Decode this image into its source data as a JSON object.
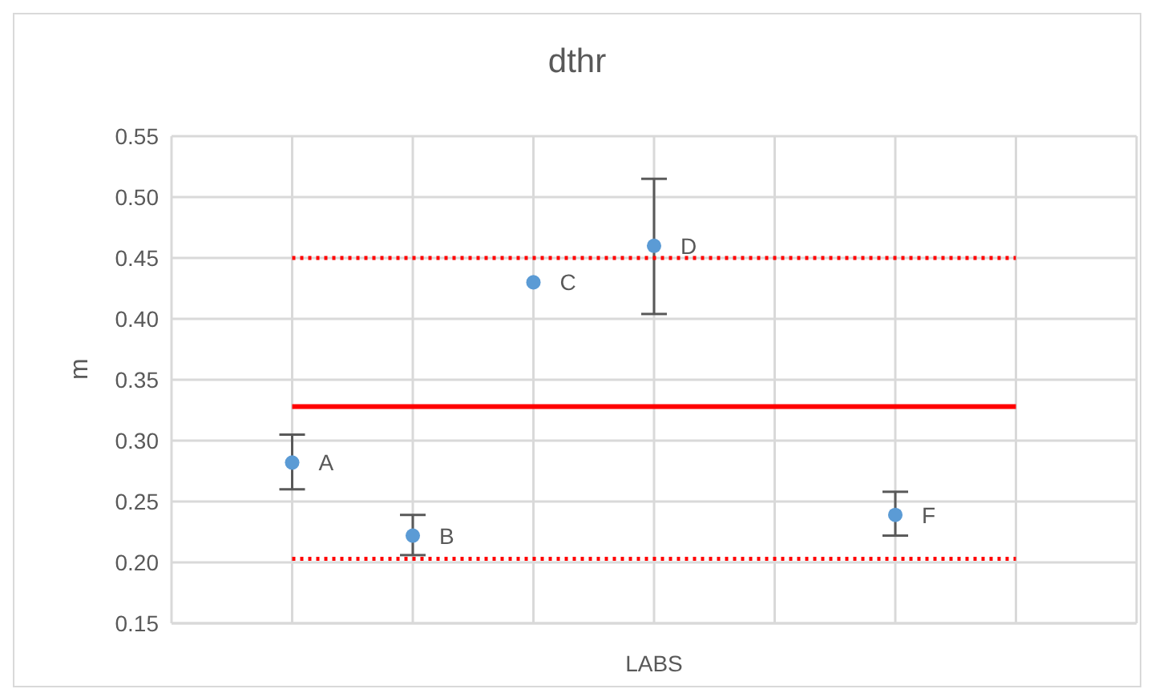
{
  "chart_data": {
    "type": "scatter",
    "title": "dthr",
    "xlabel": "LABS",
    "ylabel": "m",
    "categories": [
      null,
      null,
      null,
      null,
      null,
      null,
      null
    ],
    "ylim": [
      0.15,
      0.55
    ],
    "yticks": [
      {
        "value": 0.15,
        "label": "0.15"
      },
      {
        "value": 0.2,
        "label": "0.20"
      },
      {
        "value": 0.25,
        "label": "0.25"
      },
      {
        "value": 0.3,
        "label": "0.30"
      },
      {
        "value": 0.35,
        "label": "0.35"
      },
      {
        "value": 0.4,
        "label": "0.40"
      },
      {
        "value": 0.45,
        "label": "0.45"
      },
      {
        "value": 0.5,
        "label": "0.50"
      },
      {
        "value": 0.55,
        "label": "0.55"
      }
    ],
    "grid": true,
    "marker": "circle",
    "series": [
      {
        "color": "#5b9bd5",
        "values": [
          0.282,
          0.222,
          0.43,
          0.46,
          null,
          0.239,
          null
        ],
        "errors": [
          [
            0.26,
            0.305
          ],
          [
            0.206,
            0.239
          ],
          null,
          [
            0.404,
            0.515
          ],
          null,
          [
            0.222,
            0.258
          ],
          null
        ],
        "value_labels": [
          "A",
          "B",
          "C",
          "D",
          null,
          "F",
          null
        ]
      },
      {
        "type": "line",
        "color": "#ff0000",
        "values": [
          0.328,
          0.328,
          0.328,
          0.328,
          0.328,
          0.328,
          0.328
        ],
        "line_style": "solid",
        "marker": "none"
      },
      {
        "type": "line",
        "color": "#ff0000",
        "values": [
          0.45,
          0.45,
          0.45,
          0.45,
          0.45,
          0.45,
          0.45
        ],
        "line_style": "dotted",
        "marker": "none"
      },
      {
        "type": "line",
        "color": "#ff0000",
        "values": [
          0.203,
          0.203,
          0.203,
          0.203,
          0.203,
          0.203,
          0.203
        ],
        "line_style": "dotted",
        "marker": "none"
      }
    ]
  }
}
